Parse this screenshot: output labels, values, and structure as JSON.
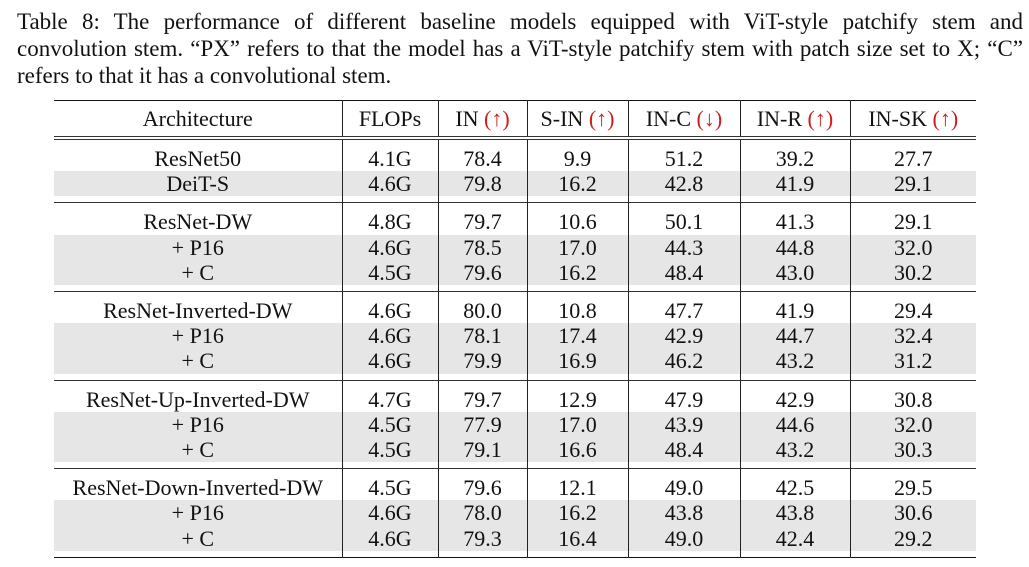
{
  "caption": "Table 8: The performance of different baseline models equipped with ViT-style patchify stem and convolution stem. “PX” refers to that the model has a ViT-style patchify stem with patch size set to X; “C” refers to that it has a convolutional stem.",
  "headers": {
    "architecture": "Architecture",
    "flops": "FLOPs",
    "in": "IN",
    "s_in": "S-IN",
    "in_c": "IN-C",
    "in_r": "IN-R",
    "in_sk": "IN-SK",
    "up_arrow": "(↑)",
    "down_arrow": "(↓)"
  },
  "colors": {
    "arrow": "#cc1f1f",
    "shade": "#e6e6e6"
  },
  "groups": [
    {
      "rows": [
        {
          "arch": "ResNet50",
          "flops": "4.1G",
          "in": "78.4",
          "s_in": "9.9",
          "in_c": "51.2",
          "in_r": "39.2",
          "in_sk": "27.7"
        },
        {
          "arch": "DeiT-S",
          "flops": "4.6G",
          "in": "79.8",
          "s_in": "16.2",
          "in_c": "42.8",
          "in_r": "41.9",
          "in_sk": "29.1"
        }
      ]
    },
    {
      "rows": [
        {
          "arch": "ResNet-DW",
          "flops": "4.8G",
          "in": "79.7",
          "s_in": "10.6",
          "in_c": "50.1",
          "in_r": "41.3",
          "in_sk": "29.1"
        },
        {
          "arch": "+ P16",
          "flops": "4.6G",
          "in": "78.5",
          "s_in": "17.0",
          "in_c": "44.3",
          "in_r": "44.8",
          "in_sk": "32.0"
        },
        {
          "arch": "+ C",
          "flops": "4.5G",
          "in": "79.6",
          "s_in": "16.2",
          "in_c": "48.4",
          "in_r": "43.0",
          "in_sk": "30.2"
        }
      ]
    },
    {
      "rows": [
        {
          "arch": "ResNet-Inverted-DW",
          "flops": "4.6G",
          "in": "80.0",
          "s_in": "10.8",
          "in_c": "47.7",
          "in_r": "41.9",
          "in_sk": "29.4"
        },
        {
          "arch": "+ P16",
          "flops": "4.6G",
          "in": "78.1",
          "s_in": "17.4",
          "in_c": "42.9",
          "in_r": "44.7",
          "in_sk": "32.4"
        },
        {
          "arch": "+ C",
          "flops": "4.6G",
          "in": "79.9",
          "s_in": "16.9",
          "in_c": "46.2",
          "in_r": "43.2",
          "in_sk": "31.2"
        }
      ]
    },
    {
      "rows": [
        {
          "arch": "ResNet-Up-Inverted-DW",
          "flops": "4.7G",
          "in": "79.7",
          "s_in": "12.9",
          "in_c": "47.9",
          "in_r": "42.9",
          "in_sk": "30.8"
        },
        {
          "arch": "+ P16",
          "flops": "4.5G",
          "in": "77.9",
          "s_in": "17.0",
          "in_c": "43.9",
          "in_r": "44.6",
          "in_sk": "32.0"
        },
        {
          "arch": "+ C",
          "flops": "4.5G",
          "in": "79.1",
          "s_in": "16.6",
          "in_c": "48.4",
          "in_r": "43.2",
          "in_sk": "30.3"
        }
      ]
    },
    {
      "rows": [
        {
          "arch": "ResNet-Down-Inverted-DW",
          "flops": "4.5G",
          "in": "79.6",
          "s_in": "12.1",
          "in_c": "49.0",
          "in_r": "42.5",
          "in_sk": "29.5"
        },
        {
          "arch": "+ P16",
          "flops": "4.6G",
          "in": "78.0",
          "s_in": "16.2",
          "in_c": "43.8",
          "in_r": "43.8",
          "in_sk": "30.6"
        },
        {
          "arch": "+ C",
          "flops": "4.6G",
          "in": "79.3",
          "s_in": "16.4",
          "in_c": "49.0",
          "in_r": "42.4",
          "in_sk": "29.2"
        }
      ]
    }
  ]
}
